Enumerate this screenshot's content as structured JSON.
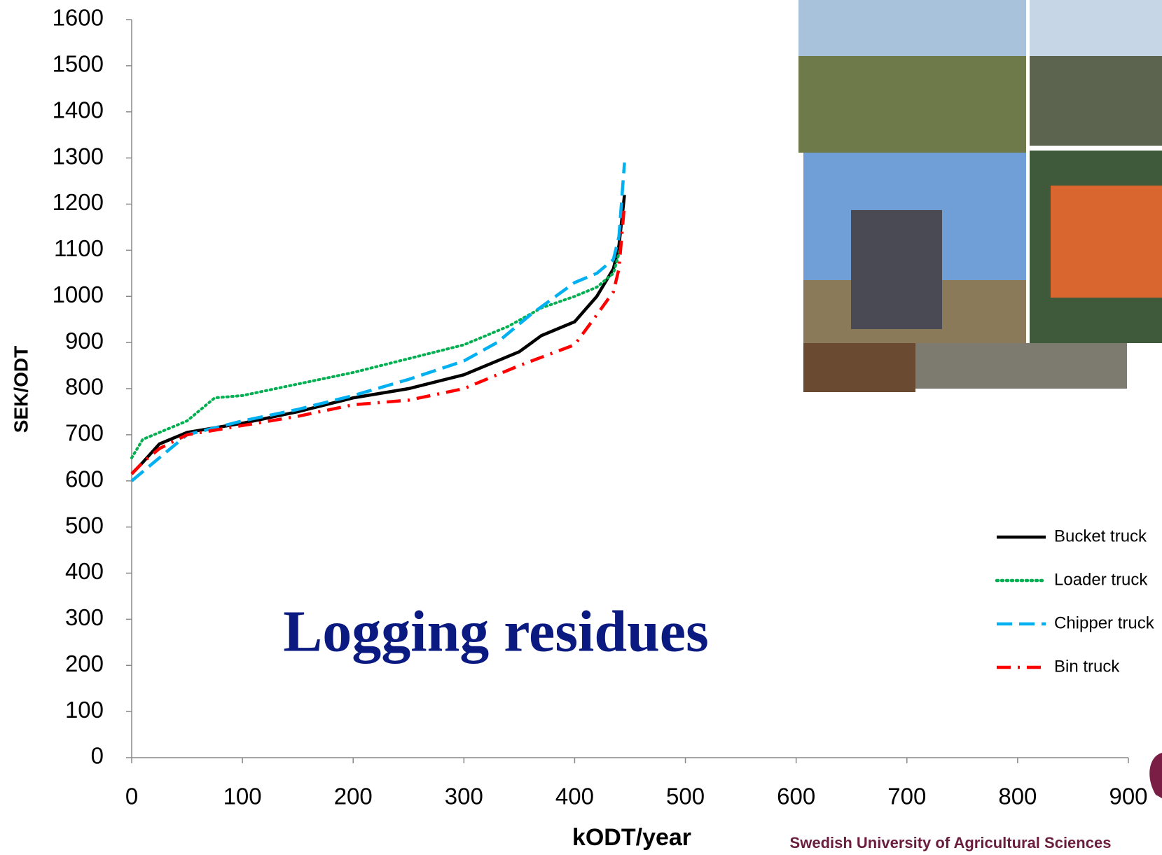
{
  "chart_data": {
    "type": "line",
    "xlabel": "kODT/year",
    "ylabel": "SEK/ODT",
    "annotation": "Logging residues",
    "footer": "Swedish University of Agricultural Sciences",
    "xlim": [
      0,
      900
    ],
    "xticks": [
      0,
      100,
      200,
      300,
      400,
      500,
      600,
      700,
      800,
      900
    ],
    "ylim": [
      0,
      1600
    ],
    "yticks": [
      0,
      100,
      200,
      300,
      400,
      500,
      600,
      700,
      800,
      900,
      1000,
      1100,
      1200,
      1300,
      1400,
      1500,
      1600
    ],
    "grid": false,
    "legend": "right",
    "series": [
      {
        "name": "Bucket truck",
        "color": "#000000",
        "dash": "solid",
        "x": [
          0,
          10,
          25,
          50,
          100,
          150,
          200,
          250,
          300,
          350,
          370,
          400,
          420,
          435,
          440,
          445
        ],
        "values": [
          615,
          640,
          680,
          705,
          725,
          750,
          780,
          800,
          830,
          880,
          915,
          945,
          1000,
          1060,
          1110,
          1220
        ]
      },
      {
        "name": "Loader truck",
        "color": "#00b050",
        "dash": "dotted",
        "x": [
          0,
          10,
          50,
          75,
          100,
          150,
          200,
          250,
          300,
          340,
          370,
          400,
          420,
          435,
          442
        ],
        "values": [
          650,
          690,
          730,
          780,
          785,
          810,
          835,
          865,
          895,
          935,
          975,
          1000,
          1020,
          1050,
          1110
        ]
      },
      {
        "name": "Chipper truck",
        "color": "#00b0f0",
        "dash": "dashed",
        "x": [
          0,
          20,
          50,
          100,
          150,
          200,
          250,
          300,
          330,
          360,
          400,
          420,
          435,
          440,
          445
        ],
        "values": [
          600,
          640,
          700,
          730,
          755,
          785,
          820,
          860,
          900,
          960,
          1030,
          1050,
          1080,
          1130,
          1290
        ]
      },
      {
        "name": "Bin truck",
        "color": "#ff0000",
        "dash": "dashdot",
        "x": [
          0,
          10,
          25,
          50,
          100,
          150,
          200,
          250,
          300,
          350,
          400,
          420,
          435,
          440,
          445
        ],
        "values": [
          615,
          640,
          670,
          700,
          720,
          740,
          765,
          775,
          800,
          850,
          895,
          960,
          1010,
          1060,
          1200
        ]
      }
    ]
  }
}
